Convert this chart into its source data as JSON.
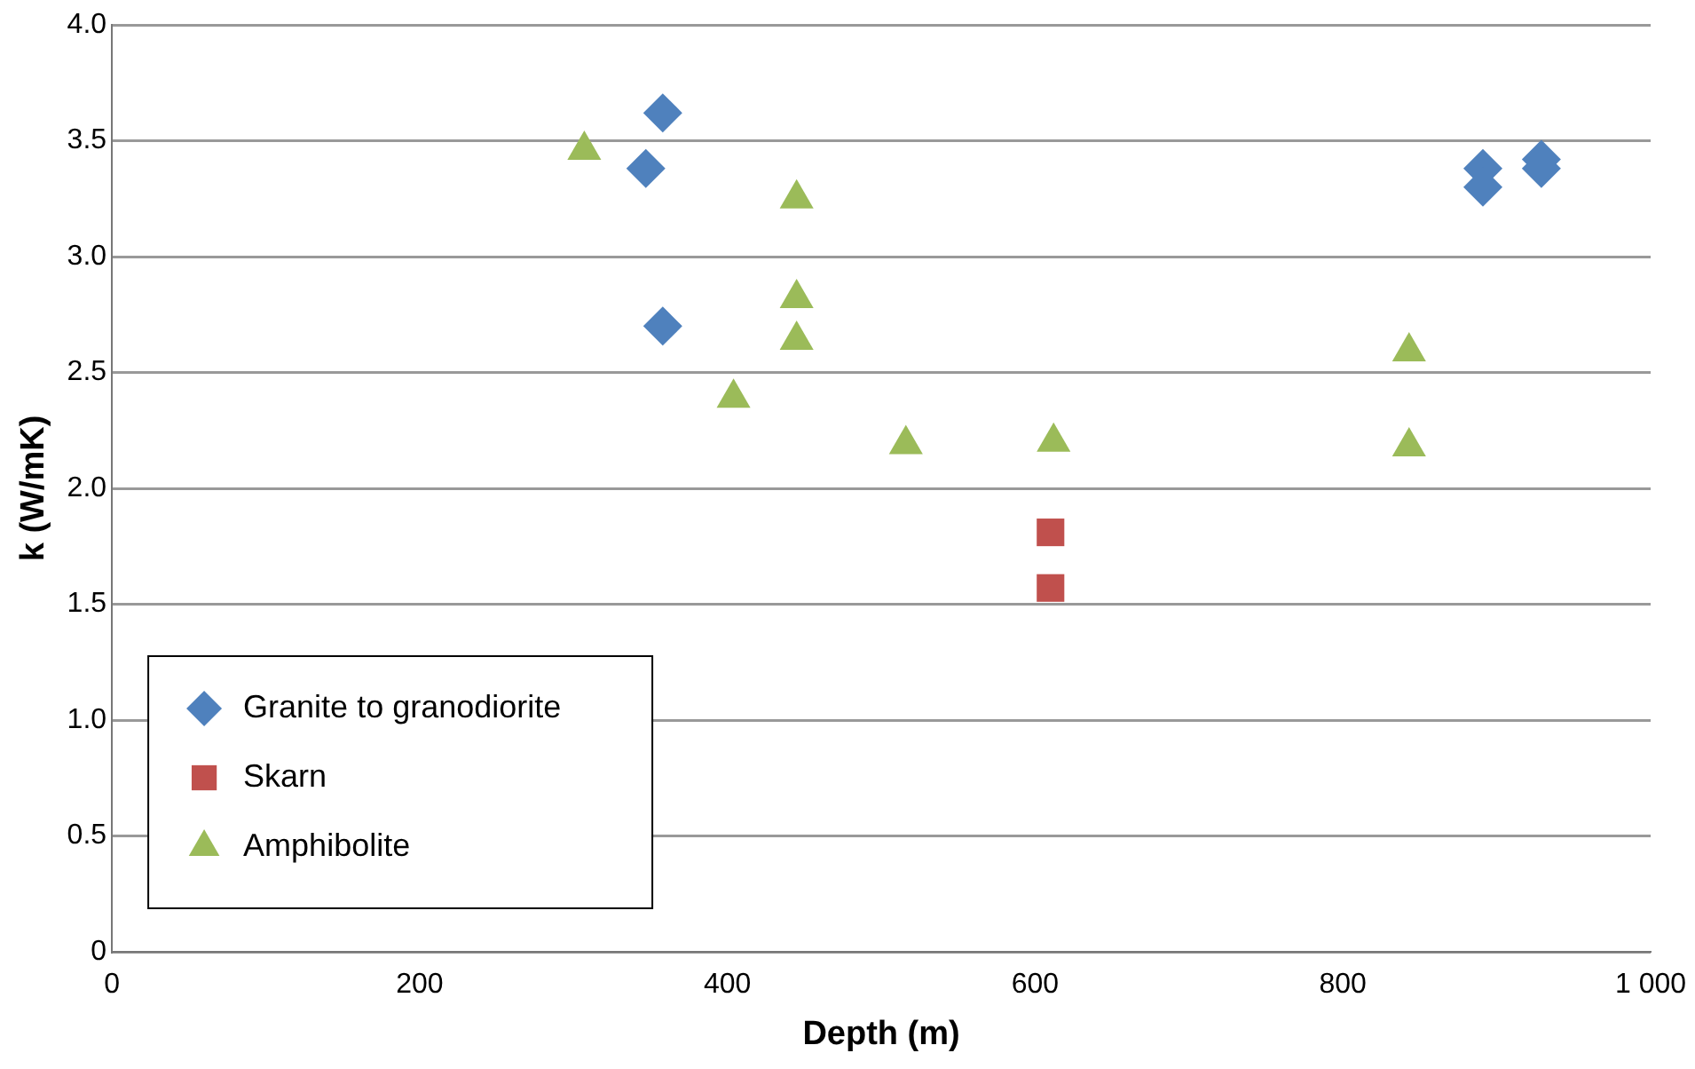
{
  "chart_data": {
    "type": "scatter",
    "xlabel": "Depth (m)",
    "ylabel": "k (W/mK)",
    "xlim": [
      0,
      1000
    ],
    "xticks": [
      0,
      200,
      400,
      600,
      800,
      {
        "value": 1000,
        "label": "1 000"
      }
    ],
    "ylim": [
      0,
      4
    ],
    "yticks": [
      0,
      0.5,
      {
        "value": 1,
        "label": "1.0"
      },
      1.5,
      {
        "value": 2,
        "label": "2.0"
      },
      2.5,
      {
        "value": 3,
        "label": "3.0"
      },
      3.5,
      {
        "value": 4,
        "label": "4.0"
      }
    ],
    "grid": "y",
    "legend": "bottom left",
    "series": [
      {
        "name": "Granite to granodiorite",
        "color": "#4f81bd",
        "marker": "diamond",
        "x": [
          358,
          347,
          358,
          891,
          891,
          929,
          929
        ],
        "values": [
          3.62,
          3.38,
          2.7,
          3.38,
          3.3,
          3.42,
          3.38
        ]
      },
      {
        "name": "Skarn",
        "color": "#c0504d",
        "marker": "square",
        "x": [
          610,
          610
        ],
        "values": [
          1.81,
          1.57
        ]
      },
      {
        "name": "Amphibolite",
        "color": "#9bbb59",
        "marker": "triangle",
        "x": [
          307,
          445,
          445,
          445,
          404,
          516,
          612,
          843,
          843
        ],
        "values": [
          3.46,
          3.25,
          2.82,
          2.64,
          2.39,
          2.19,
          2.2,
          2.59,
          2.18
        ]
      }
    ]
  }
}
